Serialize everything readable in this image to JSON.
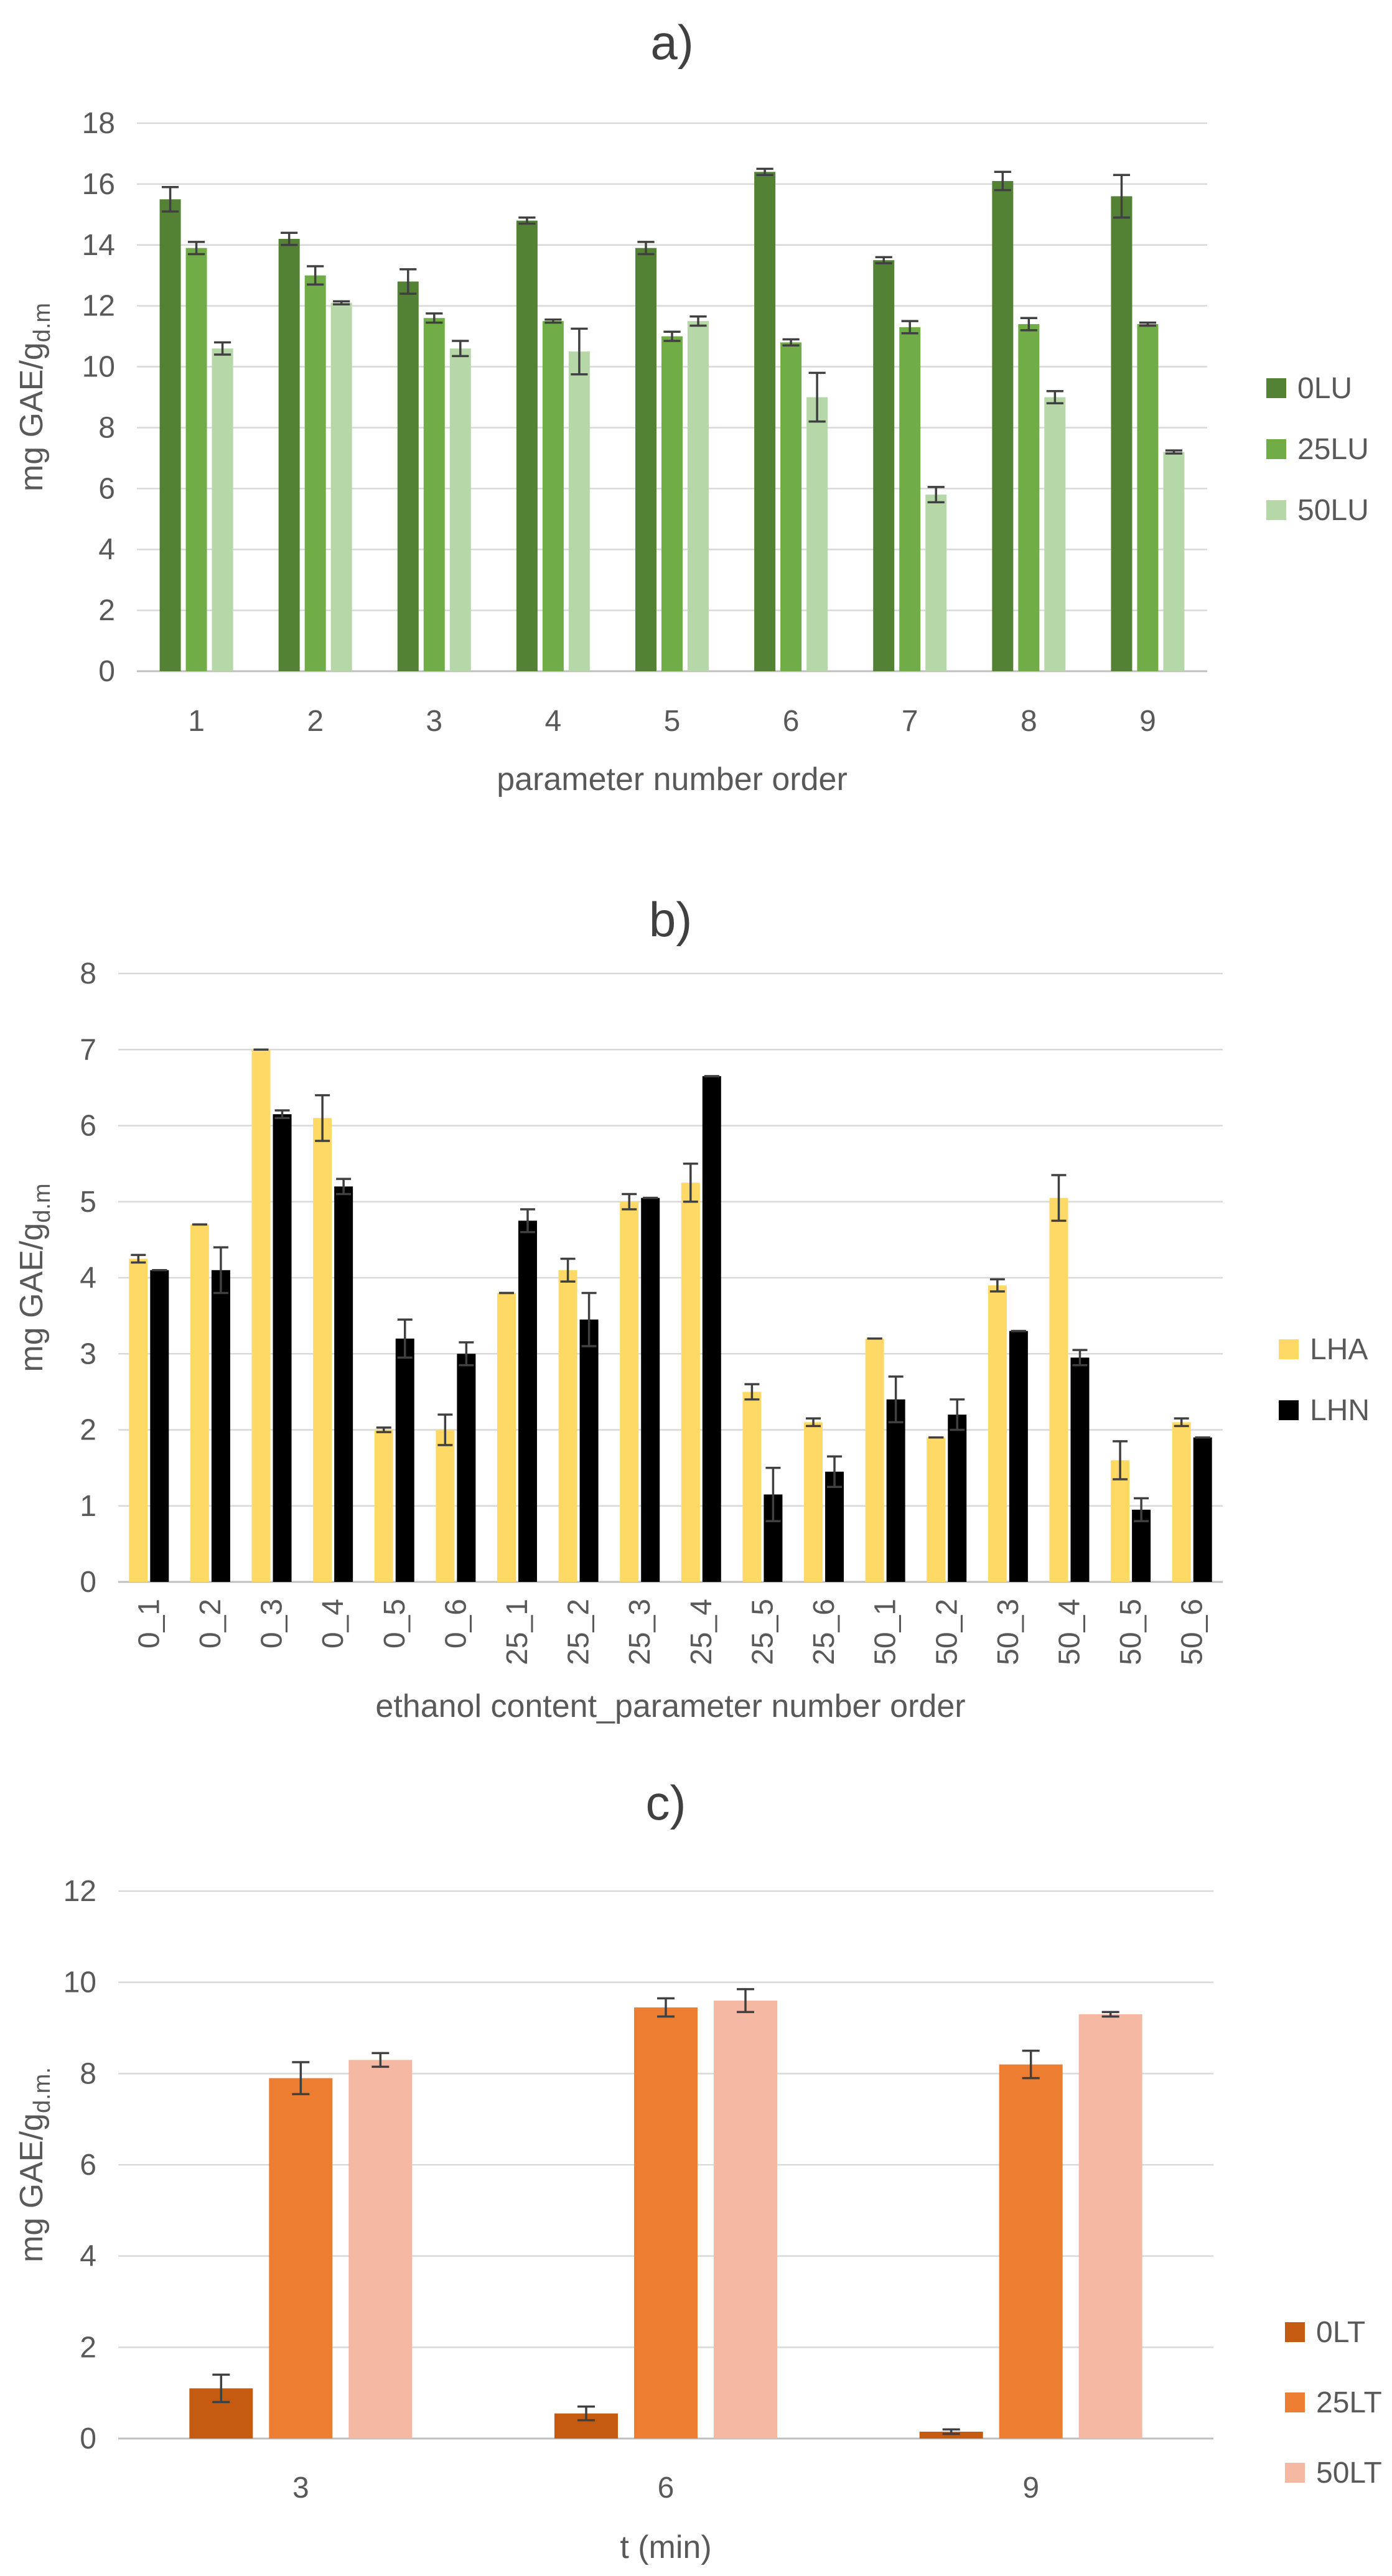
{
  "figure": {
    "colors": {
      "gridline": "#d9d9d9",
      "axisline": "#bfbfbf",
      "errorbar": "#404040",
      "text": "#595959"
    }
  },
  "chart_data": [
    {
      "type": "bar",
      "id": "a",
      "title": "a)",
      "xlabel": "parameter number order",
      "ylabel": "mg GAE/g",
      "ylabel_sub": "d.m",
      "ylim": [
        0,
        18
      ],
      "yticks": [
        0,
        2,
        4,
        6,
        8,
        10,
        12,
        14,
        16,
        18
      ],
      "grid": true,
      "legend_position": "right",
      "categories": [
        "1",
        "2",
        "3",
        "4",
        "5",
        "6",
        "7",
        "8",
        "9"
      ],
      "series": [
        {
          "name": "0LU",
          "color": "#548235",
          "values": [
            15.5,
            14.2,
            12.8,
            14.8,
            13.9,
            16.4,
            13.5,
            16.1,
            15.6
          ],
          "errors": [
            0.4,
            0.2,
            0.4,
            0.1,
            0.2,
            0.1,
            0.1,
            0.3,
            0.7
          ]
        },
        {
          "name": "25LU",
          "color": "#70ad47",
          "values": [
            13.9,
            13.0,
            11.6,
            11.5,
            11.0,
            10.8,
            11.3,
            11.4,
            11.4
          ],
          "errors": [
            0.2,
            0.3,
            0.15,
            0.05,
            0.15,
            0.1,
            0.2,
            0.2,
            0.05
          ]
        },
        {
          "name": "50LU",
          "color": "#b6d7a8",
          "values": [
            10.6,
            12.1,
            10.6,
            10.5,
            11.5,
            9.0,
            5.8,
            9.0,
            7.2
          ],
          "errors": [
            0.2,
            0.05,
            0.25,
            0.75,
            0.15,
            0.8,
            0.25,
            0.2,
            0.05
          ]
        }
      ]
    },
    {
      "type": "bar",
      "id": "b",
      "title": "b)",
      "xlabel": "ethanol content_parameter number order",
      "ylabel": "mg GAE/g",
      "ylabel_sub": "d.m",
      "ylim": [
        0,
        8
      ],
      "yticks": [
        0,
        1,
        2,
        3,
        4,
        5,
        6,
        7,
        8
      ],
      "grid": true,
      "legend_position": "right",
      "categories": [
        "0_1",
        "0_2",
        "0_3",
        "0_4",
        "0_5",
        "0_6",
        "25_1",
        "25_2",
        "25_3",
        "25_4",
        "25_5",
        "25_6",
        "50_1",
        "50_2",
        "50_3",
        "50_4",
        "50_5",
        "50_6"
      ],
      "series": [
        {
          "name": "LHA",
          "color": "#ffd966",
          "values": [
            4.25,
            4.7,
            7.0,
            6.1,
            2.0,
            2.0,
            3.8,
            4.1,
            5.0,
            5.25,
            2.5,
            2.1,
            3.2,
            1.9,
            3.9,
            5.05,
            1.6,
            2.1
          ],
          "errors": [
            0.05,
            0.0,
            0.0,
            0.3,
            0.03,
            0.2,
            0.0,
            0.15,
            0.1,
            0.25,
            0.1,
            0.05,
            0.0,
            0.0,
            0.08,
            0.3,
            0.25,
            0.05
          ]
        },
        {
          "name": "LHN",
          "color": "#000000",
          "values": [
            4.1,
            4.1,
            6.15,
            5.2,
            3.2,
            3.0,
            4.75,
            3.45,
            5.05,
            6.65,
            1.15,
            1.45,
            2.4,
            2.2,
            3.3,
            2.95,
            0.95,
            1.9
          ],
          "errors": [
            0.0,
            0.3,
            0.05,
            0.1,
            0.25,
            0.15,
            0.15,
            0.35,
            0.0,
            0.0,
            0.35,
            0.2,
            0.3,
            0.2,
            0.0,
            0.1,
            0.15,
            0.0
          ]
        }
      ]
    },
    {
      "type": "bar",
      "id": "c",
      "title": "c)",
      "xlabel": "t (min)",
      "ylabel": "mg GAE/g",
      "ylabel_sub": "d.m.",
      "ylim": [
        0,
        12
      ],
      "yticks": [
        0,
        2,
        4,
        6,
        8,
        10,
        12
      ],
      "grid": true,
      "legend_position": "right",
      "categories": [
        "3",
        "6",
        "9"
      ],
      "series": [
        {
          "name": "0LT",
          "color": "#c55a11",
          "values": [
            1.1,
            0.55,
            0.15
          ],
          "errors": [
            0.3,
            0.15,
            0.05
          ]
        },
        {
          "name": "25LT",
          "color": "#ed7d31",
          "values": [
            7.9,
            9.45,
            8.2
          ],
          "errors": [
            0.35,
            0.2,
            0.3
          ]
        },
        {
          "name": "50LT",
          "color": "#f4b8a3",
          "values": [
            8.3,
            9.6,
            9.3
          ],
          "errors": [
            0.15,
            0.25,
            0.05
          ]
        }
      ]
    }
  ]
}
